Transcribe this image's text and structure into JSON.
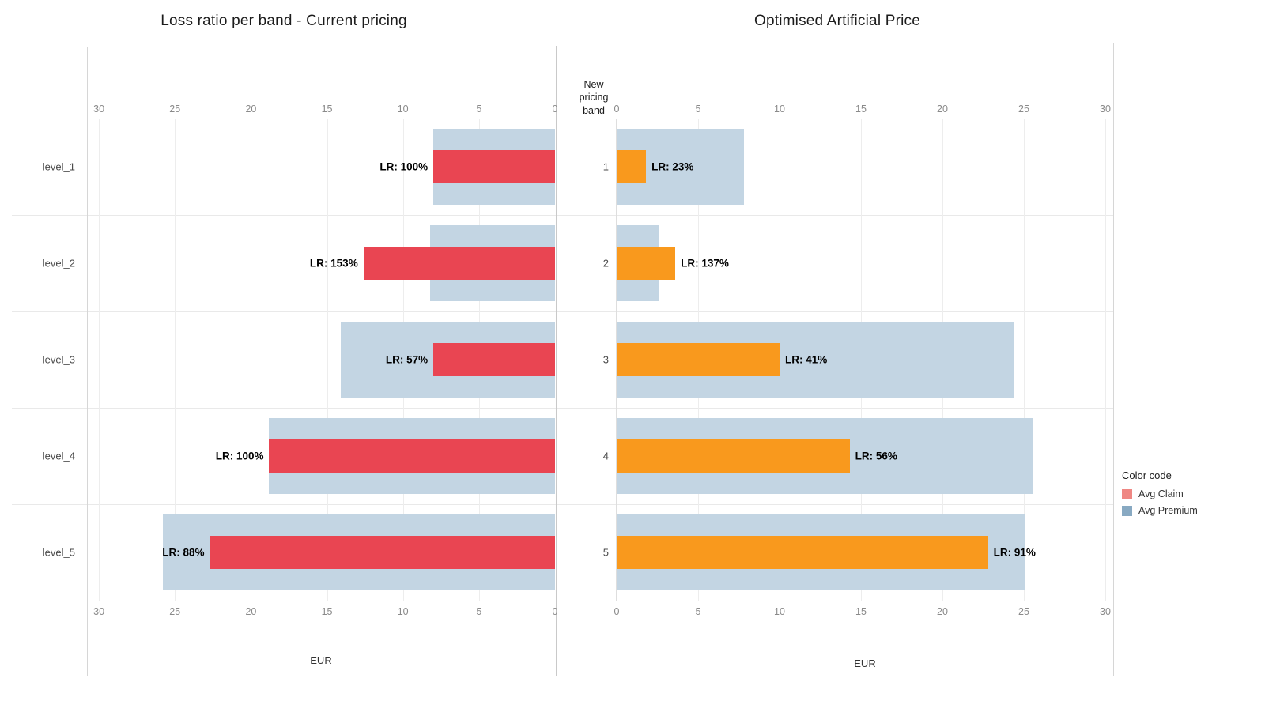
{
  "legend": {
    "title": "Color code",
    "items": [
      {
        "label": "Avg Claim",
        "color": "#ef8783"
      },
      {
        "label": "Avg Premium",
        "color": "#88a9c2"
      }
    ]
  },
  "chart_data": [
    {
      "type": "bar",
      "orientation": "horizontal",
      "title": "Loss ratio per band - Current pricing",
      "xlabel": "EUR",
      "axis_ticks": [
        30,
        25,
        20,
        15,
        10,
        5,
        0
      ],
      "xlim": [
        0,
        30
      ],
      "x_axis_reversed": true,
      "grid": true,
      "series": [
        "Avg Premium",
        "Avg Claim"
      ],
      "colors": {
        "avg_premium": "#c3d5e3",
        "avg_claim": "#e94552"
      },
      "rows": [
        {
          "band": "level_1",
          "avg_premium": 8.0,
          "avg_claim": 8.0,
          "loss_ratio": "LR: 100%"
        },
        {
          "band": "level_2",
          "avg_premium": 8.2,
          "avg_claim": 12.6,
          "loss_ratio": "LR: 153%"
        },
        {
          "band": "level_3",
          "avg_premium": 14.1,
          "avg_claim": 8.0,
          "loss_ratio": "LR: 57%"
        },
        {
          "band": "level_4",
          "avg_premium": 18.8,
          "avg_claim": 18.8,
          "loss_ratio": "LR: 100%"
        },
        {
          "band": "level_5",
          "avg_premium": 25.8,
          "avg_claim": 22.7,
          "loss_ratio": "LR: 88%"
        }
      ]
    },
    {
      "type": "bar",
      "orientation": "horizontal",
      "title": "Optimised Artificial Price",
      "xlabel": "EUR",
      "band_axis_title": "New pricing band",
      "axis_ticks": [
        0,
        5,
        10,
        15,
        20,
        25,
        30
      ],
      "xlim": [
        0,
        30
      ],
      "x_axis_reversed": false,
      "grid": true,
      "series": [
        "Avg Premium",
        "Avg Claim"
      ],
      "colors": {
        "avg_premium": "#c3d5e3",
        "avg_claim": "#f9991d"
      },
      "rows": [
        {
          "band": "1",
          "avg_premium": 7.8,
          "avg_claim": 1.8,
          "loss_ratio": "LR: 23%"
        },
        {
          "band": "2",
          "avg_premium": 2.6,
          "avg_claim": 3.6,
          "loss_ratio": "LR: 137%"
        },
        {
          "band": "3",
          "avg_premium": 24.4,
          "avg_claim": 10.0,
          "loss_ratio": "LR: 41%"
        },
        {
          "band": "4",
          "avg_premium": 25.6,
          "avg_claim": 14.3,
          "loss_ratio": "LR: 56%"
        },
        {
          "band": "5",
          "avg_premium": 25.1,
          "avg_claim": 22.8,
          "loss_ratio": "LR: 91%"
        }
      ]
    }
  ]
}
